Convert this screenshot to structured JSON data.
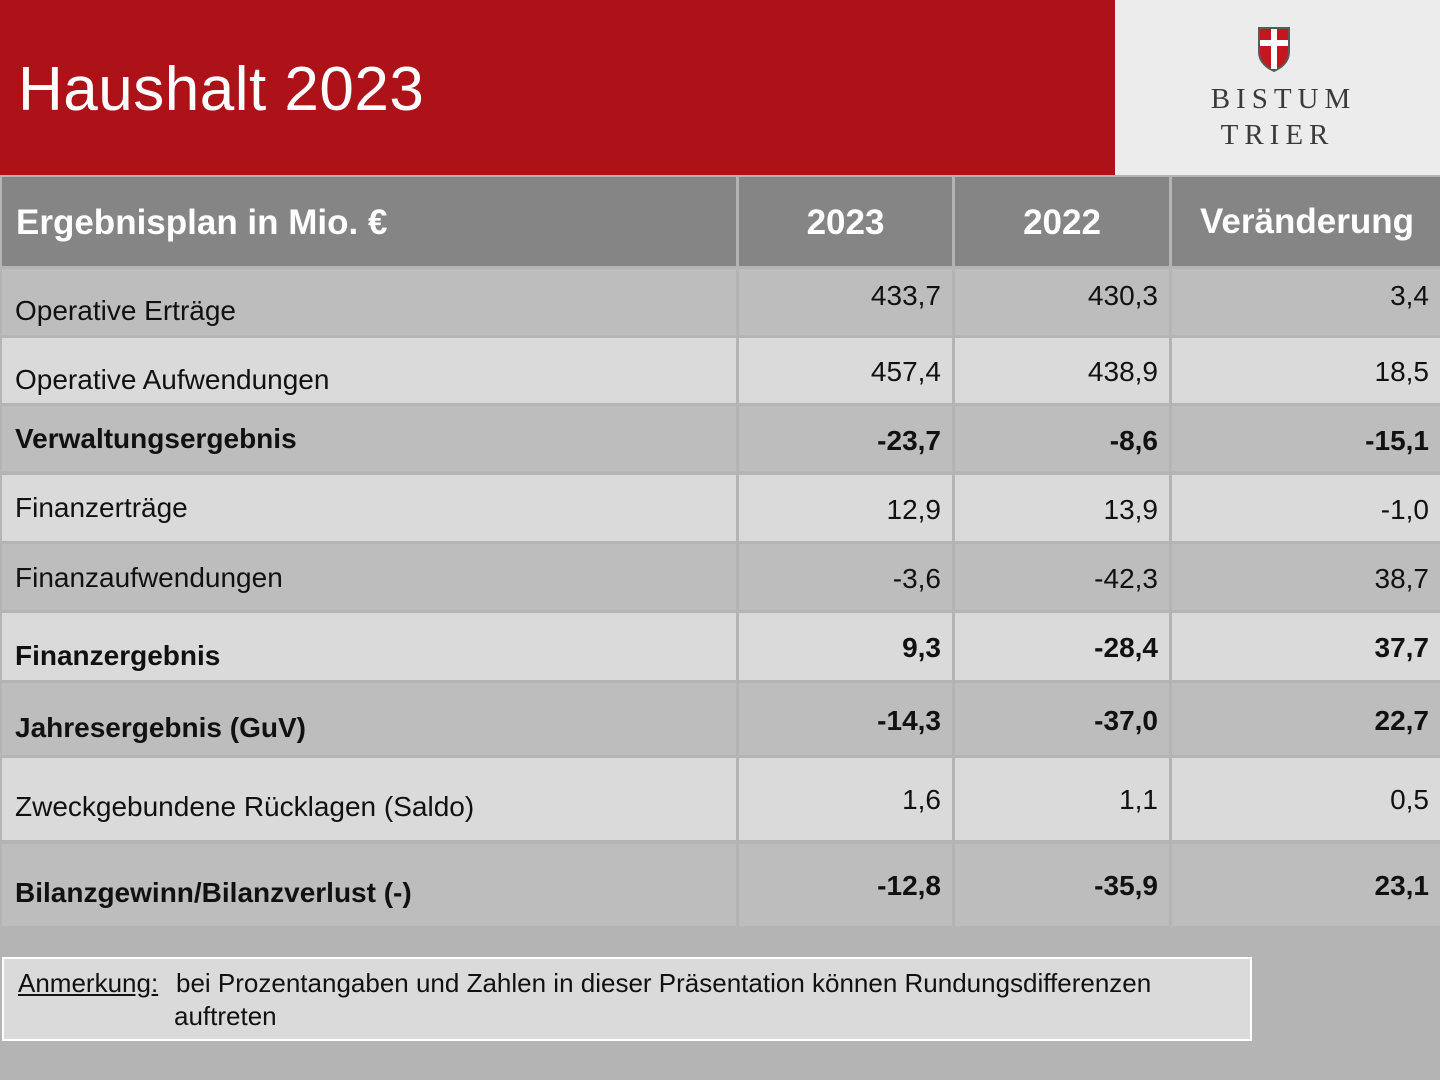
{
  "header": {
    "title": "Haushalt 2023",
    "brand_color": "#ad1219"
  },
  "logo": {
    "line1": "BISTUM",
    "line2": "TRIER",
    "icon": "shield-cross-icon"
  },
  "table": {
    "headers": [
      "Ergebnisplan in Mio. €",
      "2023",
      "2022",
      "Veränderung"
    ],
    "rows": [
      {
        "label": "Operative Erträge",
        "y2023": "433,7",
        "y2022": "430,3",
        "change": "3,4",
        "bold": false
      },
      {
        "label": "Operative Aufwendungen",
        "y2023": "457,4",
        "y2022": "438,9",
        "change": "18,5",
        "bold": false
      },
      {
        "label": "Verwaltungsergebnis",
        "y2023": "-23,7",
        "y2022": "-8,6",
        "change": "-15,1",
        "bold": true
      },
      {
        "label": "Finanzerträge",
        "y2023": "12,9",
        "y2022": "13,9",
        "change": "-1,0",
        "bold": false
      },
      {
        "label": "Finanzaufwendungen",
        "y2023": "-3,6",
        "y2022": "-42,3",
        "change": "38,7",
        "bold": false
      },
      {
        "label": "Finanzergebnis",
        "y2023": "9,3",
        "y2022": "-28,4",
        "change": "37,7",
        "bold": true
      },
      {
        "label": "Jahresergebnis (GuV)",
        "y2023": "-14,3",
        "y2022": "-37,0",
        "change": "22,7",
        "bold": true
      },
      {
        "label": "Zweckgebundene Rücklagen (Saldo)",
        "y2023": "1,6",
        "y2022": "1,1",
        "change": "0,5",
        "bold": false
      },
      {
        "label": "Bilanzgewinn/Bilanzverlust (-)",
        "y2023": "-12,8",
        "y2022": "-35,9",
        "change": "23,1",
        "bold": true
      }
    ]
  },
  "note": {
    "prefix": "Anmerkung:",
    "line1": "bei Prozentangaben und Zahlen in dieser Präsentation können Rundungsdifferenzen",
    "line2": "auftreten"
  }
}
